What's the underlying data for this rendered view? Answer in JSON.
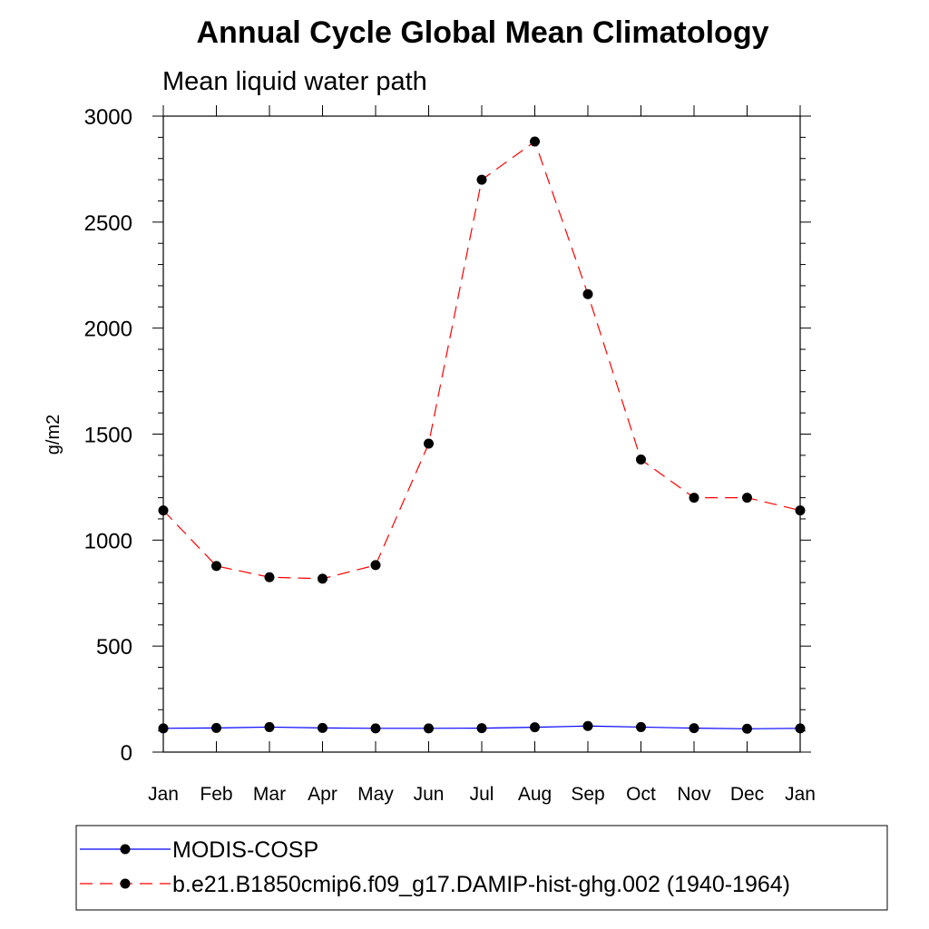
{
  "chart_data": {
    "type": "line",
    "title": "Annual Cycle Global Mean Climatology",
    "subtitle": "Mean liquid water path",
    "xlabel": "",
    "ylabel": "g/m2",
    "categories": [
      "Jan",
      "Feb",
      "Mar",
      "Apr",
      "May",
      "Jun",
      "Jul",
      "Aug",
      "Sep",
      "Oct",
      "Nov",
      "Dec",
      "Jan"
    ],
    "ylim": [
      0,
      3000
    ],
    "yticks": [
      "0",
      "500",
      "1000",
      "1500",
      "2000",
      "2500",
      "3000"
    ],
    "grid": false,
    "legend_position": "bottom",
    "series": [
      {
        "name": "MODIS-COSP",
        "color": "#0000ff",
        "line_style": "solid",
        "marker": "filled-circle",
        "values": [
          112,
          114,
          118,
          114,
          112,
          112,
          113,
          117,
          123,
          118,
          113,
          110,
          112
        ]
      },
      {
        "name": "b.e21.B1850cmip6.f09_g17.DAMIP-hist-ghg.002 (1940-1964)",
        "color": "#ff0000",
        "line_style": "dashed",
        "marker": "filled-circle",
        "values": [
          1140,
          878,
          825,
          818,
          882,
          1455,
          2700,
          2880,
          2160,
          1380,
          1200,
          1200,
          1140
        ]
      }
    ]
  }
}
